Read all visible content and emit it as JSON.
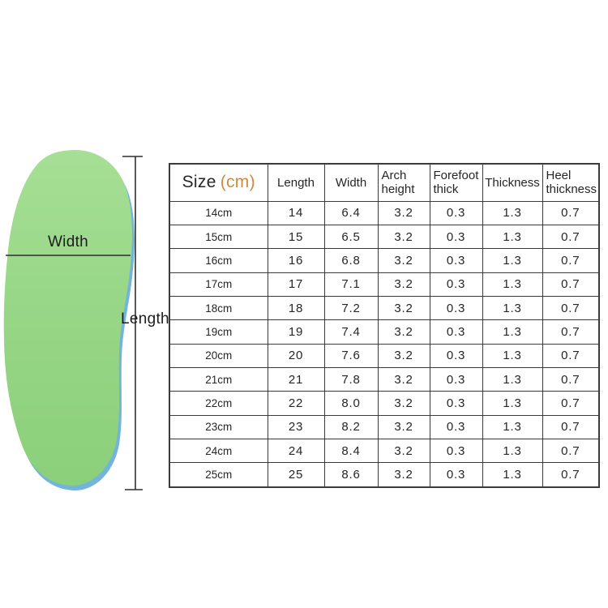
{
  "diagram": {
    "width_label": "Width",
    "length_label": "Length",
    "insole_color": "#95d584",
    "insole_color_light": "#a6df95",
    "insole_edge_blue": "#74b4da",
    "line_color": "#2f2f2f"
  },
  "table": {
    "size_header": {
      "label": "Size",
      "unit": "(cm)",
      "unit_color": "#cd8a43"
    },
    "headers": [
      "Length",
      "Width",
      "Arch height",
      "Forefoot thick",
      "Thickness",
      "Heel thickness"
    ],
    "rows": [
      {
        "size": "14cm",
        "values": [
          "14",
          "6.4",
          "3.2",
          "0.3",
          "1.3",
          "0.7"
        ]
      },
      {
        "size": "15cm",
        "values": [
          "15",
          "6.5",
          "3.2",
          "0.3",
          "1.3",
          "0.7"
        ]
      },
      {
        "size": "16cm",
        "values": [
          "16",
          "6.8",
          "3.2",
          "0.3",
          "1.3",
          "0.7"
        ]
      },
      {
        "size": "17cm",
        "values": [
          "17",
          "7.1",
          "3.2",
          "0.3",
          "1.3",
          "0.7"
        ]
      },
      {
        "size": "18cm",
        "values": [
          "18",
          "7.2",
          "3.2",
          "0.3",
          "1.3",
          "0.7"
        ]
      },
      {
        "size": "19cm",
        "values": [
          "19",
          "7.4",
          "3.2",
          "0.3",
          "1.3",
          "0.7"
        ]
      },
      {
        "size": "20cm",
        "values": [
          "20",
          "7.6",
          "3.2",
          "0.3",
          "1.3",
          "0.7"
        ]
      },
      {
        "size": "21cm",
        "values": [
          "21",
          "7.8",
          "3.2",
          "0.3",
          "1.3",
          "0.7"
        ]
      },
      {
        "size": "22cm",
        "values": [
          "22",
          "8.0",
          "3.2",
          "0.3",
          "1.3",
          "0.7"
        ]
      },
      {
        "size": "23cm",
        "values": [
          "23",
          "8.2",
          "3.2",
          "0.3",
          "1.3",
          "0.7"
        ]
      },
      {
        "size": "24cm",
        "values": [
          "24",
          "8.4",
          "3.2",
          "0.3",
          "1.3",
          "0.7"
        ]
      },
      {
        "size": "25cm",
        "values": [
          "25",
          "8.6",
          "3.2",
          "0.3",
          "1.3",
          "0.7"
        ]
      }
    ],
    "border_color": "#3b3b3b"
  },
  "chart_data": {
    "type": "table",
    "columns": [
      "Size (cm)",
      "Length",
      "Width",
      "Arch height",
      "Forefoot thick",
      "Thickness",
      "Heel thickness"
    ],
    "rows": [
      [
        "14cm",
        14,
        6.4,
        3.2,
        0.3,
        1.3,
        0.7
      ],
      [
        "15cm",
        15,
        6.5,
        3.2,
        0.3,
        1.3,
        0.7
      ],
      [
        "16cm",
        16,
        6.8,
        3.2,
        0.3,
        1.3,
        0.7
      ],
      [
        "17cm",
        17,
        7.1,
        3.2,
        0.3,
        1.3,
        0.7
      ],
      [
        "18cm",
        18,
        7.2,
        3.2,
        0.3,
        1.3,
        0.7
      ],
      [
        "19cm",
        19,
        7.4,
        3.2,
        0.3,
        1.3,
        0.7
      ],
      [
        "20cm",
        20,
        7.6,
        3.2,
        0.3,
        1.3,
        0.7
      ],
      [
        "21cm",
        21,
        7.8,
        3.2,
        0.3,
        1.3,
        0.7
      ],
      [
        "22cm",
        22,
        8.0,
        3.2,
        0.3,
        1.3,
        0.7
      ],
      [
        "23cm",
        23,
        8.2,
        3.2,
        0.3,
        1.3,
        0.7
      ],
      [
        "24cm",
        24,
        8.4,
        3.2,
        0.3,
        1.3,
        0.7
      ],
      [
        "25cm",
        25,
        8.6,
        3.2,
        0.3,
        1.3,
        0.7
      ]
    ],
    "annotations": [
      "Width",
      "Length"
    ]
  }
}
